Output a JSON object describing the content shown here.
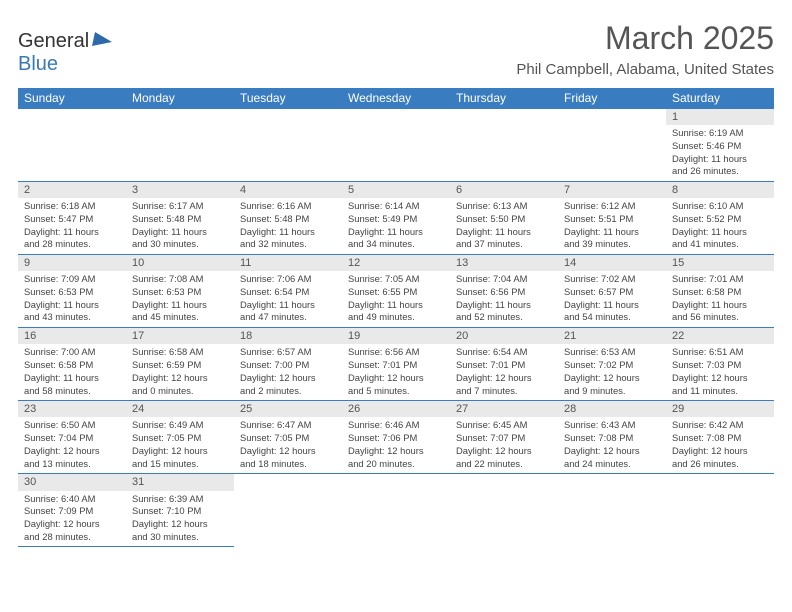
{
  "logo": {
    "text1": "General",
    "text2": "Blue"
  },
  "title": "March 2025",
  "location": "Phil Campbell, Alabama, United States",
  "colors": {
    "headerBg": "#3a7cc0",
    "headerText": "#ffffff",
    "dayNumBg": "#e9e9e9",
    "bodyText": "#444"
  },
  "dayHeaders": [
    "Sunday",
    "Monday",
    "Tuesday",
    "Wednesday",
    "Thursday",
    "Friday",
    "Saturday"
  ],
  "weeks": [
    [
      null,
      null,
      null,
      null,
      null,
      null,
      {
        "n": "1",
        "sr": "6:19 AM",
        "ss": "5:46 PM",
        "dh": "11",
        "dm": "26"
      }
    ],
    [
      {
        "n": "2",
        "sr": "6:18 AM",
        "ss": "5:47 PM",
        "dh": "11",
        "dm": "28"
      },
      {
        "n": "3",
        "sr": "6:17 AM",
        "ss": "5:48 PM",
        "dh": "11",
        "dm": "30"
      },
      {
        "n": "4",
        "sr": "6:16 AM",
        "ss": "5:48 PM",
        "dh": "11",
        "dm": "32"
      },
      {
        "n": "5",
        "sr": "6:14 AM",
        "ss": "5:49 PM",
        "dh": "11",
        "dm": "34"
      },
      {
        "n": "6",
        "sr": "6:13 AM",
        "ss": "5:50 PM",
        "dh": "11",
        "dm": "37"
      },
      {
        "n": "7",
        "sr": "6:12 AM",
        "ss": "5:51 PM",
        "dh": "11",
        "dm": "39"
      },
      {
        "n": "8",
        "sr": "6:10 AM",
        "ss": "5:52 PM",
        "dh": "11",
        "dm": "41"
      }
    ],
    [
      {
        "n": "9",
        "sr": "7:09 AM",
        "ss": "6:53 PM",
        "dh": "11",
        "dm": "43"
      },
      {
        "n": "10",
        "sr": "7:08 AM",
        "ss": "6:53 PM",
        "dh": "11",
        "dm": "45"
      },
      {
        "n": "11",
        "sr": "7:06 AM",
        "ss": "6:54 PM",
        "dh": "11",
        "dm": "47"
      },
      {
        "n": "12",
        "sr": "7:05 AM",
        "ss": "6:55 PM",
        "dh": "11",
        "dm": "49"
      },
      {
        "n": "13",
        "sr": "7:04 AM",
        "ss": "6:56 PM",
        "dh": "11",
        "dm": "52"
      },
      {
        "n": "14",
        "sr": "7:02 AM",
        "ss": "6:57 PM",
        "dh": "11",
        "dm": "54"
      },
      {
        "n": "15",
        "sr": "7:01 AM",
        "ss": "6:58 PM",
        "dh": "11",
        "dm": "56"
      }
    ],
    [
      {
        "n": "16",
        "sr": "7:00 AM",
        "ss": "6:58 PM",
        "dh": "11",
        "dm": "58"
      },
      {
        "n": "17",
        "sr": "6:58 AM",
        "ss": "6:59 PM",
        "dh": "12",
        "dm": "0"
      },
      {
        "n": "18",
        "sr": "6:57 AM",
        "ss": "7:00 PM",
        "dh": "12",
        "dm": "2"
      },
      {
        "n": "19",
        "sr": "6:56 AM",
        "ss": "7:01 PM",
        "dh": "12",
        "dm": "5"
      },
      {
        "n": "20",
        "sr": "6:54 AM",
        "ss": "7:01 PM",
        "dh": "12",
        "dm": "7"
      },
      {
        "n": "21",
        "sr": "6:53 AM",
        "ss": "7:02 PM",
        "dh": "12",
        "dm": "9"
      },
      {
        "n": "22",
        "sr": "6:51 AM",
        "ss": "7:03 PM",
        "dh": "12",
        "dm": "11"
      }
    ],
    [
      {
        "n": "23",
        "sr": "6:50 AM",
        "ss": "7:04 PM",
        "dh": "12",
        "dm": "13"
      },
      {
        "n": "24",
        "sr": "6:49 AM",
        "ss": "7:05 PM",
        "dh": "12",
        "dm": "15"
      },
      {
        "n": "25",
        "sr": "6:47 AM",
        "ss": "7:05 PM",
        "dh": "12",
        "dm": "18"
      },
      {
        "n": "26",
        "sr": "6:46 AM",
        "ss": "7:06 PM",
        "dh": "12",
        "dm": "20"
      },
      {
        "n": "27",
        "sr": "6:45 AM",
        "ss": "7:07 PM",
        "dh": "12",
        "dm": "22"
      },
      {
        "n": "28",
        "sr": "6:43 AM",
        "ss": "7:08 PM",
        "dh": "12",
        "dm": "24"
      },
      {
        "n": "29",
        "sr": "6:42 AM",
        "ss": "7:08 PM",
        "dh": "12",
        "dm": "26"
      }
    ],
    [
      {
        "n": "30",
        "sr": "6:40 AM",
        "ss": "7:09 PM",
        "dh": "12",
        "dm": "28"
      },
      {
        "n": "31",
        "sr": "6:39 AM",
        "ss": "7:10 PM",
        "dh": "12",
        "dm": "30"
      },
      null,
      null,
      null,
      null,
      null
    ]
  ]
}
